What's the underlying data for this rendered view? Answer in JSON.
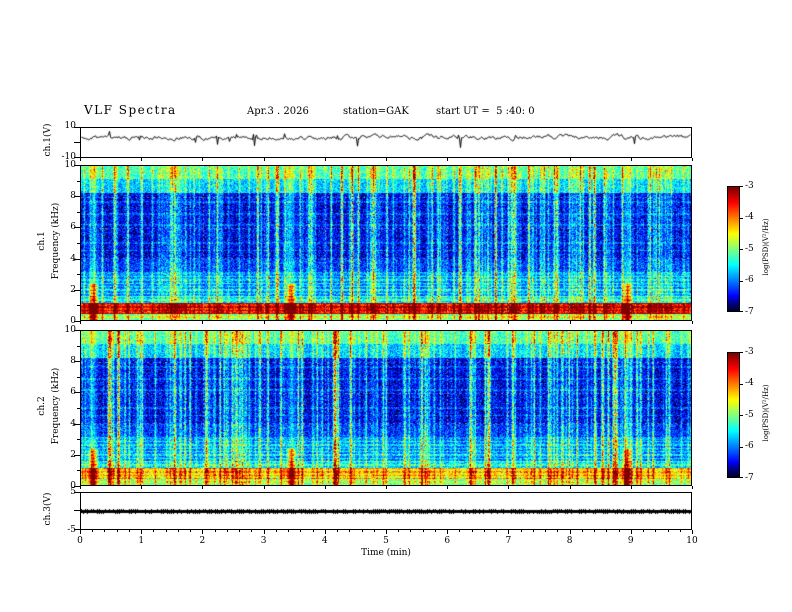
{
  "figure": {
    "bg_color": "#ffffff",
    "frame_color": "#000000"
  },
  "header": {
    "title": "VLF Spectra",
    "date": "Apr.3 . 2026",
    "station": "station=GAK",
    "start_ut": "start UT =  5 :40: 0"
  },
  "xaxis": {
    "label": "Time (min)",
    "range": [
      0,
      10
    ],
    "tick_labels": [
      "0",
      "1",
      "2",
      "3",
      "4",
      "5",
      "6",
      "7",
      "8",
      "9",
      "10"
    ]
  },
  "chart_data": [
    {
      "type": "line",
      "panel": "ch1-waveform",
      "ylabel": "ch.1(V)",
      "ylim": [
        -10,
        10
      ],
      "ytick_labels": [
        "10",
        "-10"
      ],
      "line_color": "#000000",
      "mean_level": 3.5,
      "description": "Dense noisy black voltage trace fluctuating around +3.5 V with occasional downward spikes"
    },
    {
      "type": "heatmap",
      "panel": "ch1-spectrogram",
      "channel_label": "ch.1",
      "ylabel": "Frequency (kHz)",
      "ylim": [
        0,
        10
      ],
      "ytick_labels": [
        "10",
        "8",
        "6",
        "4",
        "2",
        "0"
      ],
      "xlim": [
        0,
        10
      ],
      "colormap": "jet",
      "value_range_log_psd": [
        -7,
        -3
      ],
      "colorbar": {
        "label": "log(PSD)(V²/Hz)",
        "tick_labels": [
          "-3",
          "-4",
          "-5",
          "-6",
          "-7"
        ]
      },
      "features": {
        "background_level": -6.6,
        "sferic_streaks": "dense vertical green/cyan streaks spanning 0-10 kHz",
        "top_band": "continuous yellow-green enhancement 8.5-10 kHz",
        "low_band": "intense red/yellow band 0.5-1.2 kHz",
        "bottom_edge": "green band near 0 kHz",
        "harmonic_lines": "faint horizontal blue lines below ~3 kHz"
      },
      "notable_events_min": [
        0.2,
        3.45,
        8.95
      ]
    },
    {
      "type": "heatmap",
      "panel": "ch2-spectrogram",
      "channel_label": "ch.2",
      "ylabel": "Frequency (kHz)",
      "ylim": [
        0,
        10
      ],
      "ytick_labels": [
        "10",
        "8",
        "6",
        "4",
        "2",
        "0"
      ],
      "xlim": [
        0,
        10
      ],
      "colormap": "jet",
      "value_range_log_psd": [
        -7,
        -3
      ],
      "colorbar": {
        "label": "log(PSD)(V²/Hz)",
        "tick_labels": [
          "-3",
          "-4",
          "-5",
          "-6",
          "-7"
        ]
      },
      "features": {
        "background_level": -6.6,
        "sferic_streaks": "dense vertical green/cyan streaks spanning 0-10 kHz",
        "top_band": "continuous yellow-green enhancement 8.5-10 kHz",
        "low_band": "yellow-green band 0.5-1.2 kHz",
        "bottom_edge": "green band near 0 kHz",
        "harmonic_lines": "faint horizontal blue lines below ~3 kHz"
      },
      "notable_events_min": [
        0.2,
        3.45,
        8.95
      ]
    },
    {
      "type": "line",
      "panel": "ch3-flat",
      "ylabel": "ch.3(V)",
      "ylim": [
        -5,
        5
      ],
      "ytick_labels": [
        "5",
        "-5"
      ],
      "line_color": "#000000",
      "mean_level": 0,
      "description": "Thick flat dotted black trace at 0 V"
    }
  ]
}
